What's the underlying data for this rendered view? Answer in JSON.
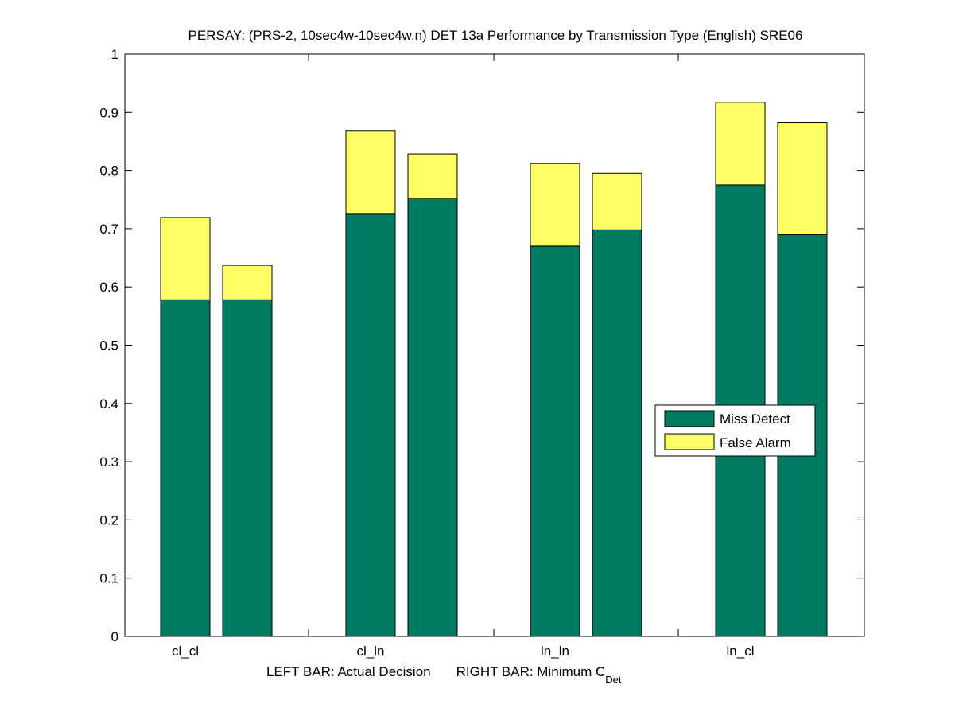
{
  "chart_data": {
    "type": "bar",
    "stacked": true,
    "title": "PERSAY: (PRS-2, 10sec4w-10sec4w.n) DET 13a Performance by Transmission Type (English) SRE06",
    "xlabel": {
      "left": "LEFT BAR: Actual Decision",
      "right_prefix": "RIGHT BAR: Minimum C",
      "right_subscript": "Det"
    },
    "ylabel": "",
    "ylim": [
      0,
      1
    ],
    "yticks": [
      0,
      0.1,
      0.2,
      0.3,
      0.4,
      0.5,
      0.6,
      0.7,
      0.8,
      0.9,
      1
    ],
    "ytick_labels": [
      "0",
      "0.1",
      "0.2",
      "0.3",
      "0.4",
      "0.5",
      "0.6",
      "0.7",
      "0.8",
      "0.9",
      "1"
    ],
    "categories": [
      "cl_cl",
      "cl_ln",
      "ln_ln",
      "ln_cl"
    ],
    "bar_roles": [
      "Actual Decision",
      "Minimum C_Det"
    ],
    "series": [
      {
        "name": "Miss Detect",
        "color": "#007b63",
        "values": [
          [
            0.578,
            0.578
          ],
          [
            0.726,
            0.752
          ],
          [
            0.67,
            0.698
          ],
          [
            0.775,
            0.69
          ]
        ]
      },
      {
        "name": "False Alarm",
        "color": "#ffff66",
        "values": [
          [
            0.141,
            0.059
          ],
          [
            0.142,
            0.076
          ],
          [
            0.142,
            0.097
          ],
          [
            0.142,
            0.192
          ]
        ]
      }
    ],
    "totals": [
      [
        0.719,
        0.637
      ],
      [
        0.868,
        0.828
      ],
      [
        0.812,
        0.795
      ],
      [
        0.917,
        0.882
      ]
    ],
    "legend": {
      "position": "center-right",
      "entries": [
        "Miss Detect",
        "False Alarm"
      ]
    },
    "grid": false
  }
}
